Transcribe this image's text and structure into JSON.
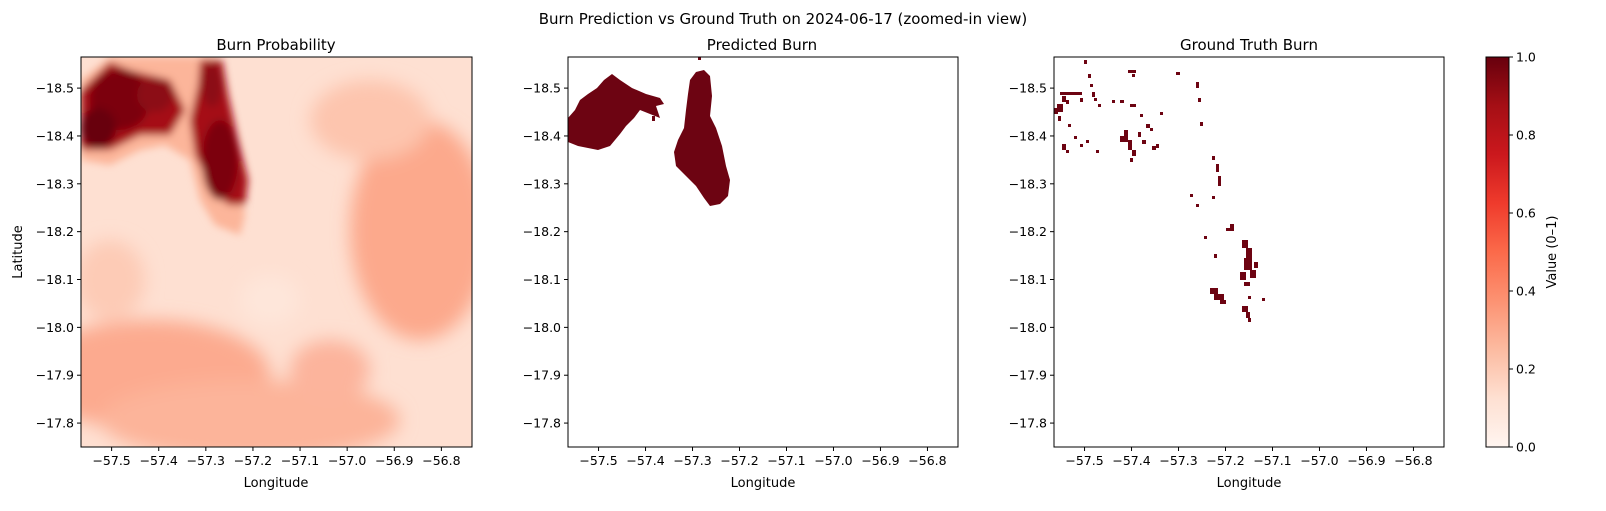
{
  "suptitle": "Burn Prediction vs Ground Truth on 2024-06-17 (zoomed-in view)",
  "chart_data": [
    {
      "type": "heatmap",
      "title": "Burn Probability",
      "xlabel": "Longitude",
      "ylabel": "Latitude",
      "xlim": [
        -57.565,
        -56.735
      ],
      "ylim": [
        -17.75,
        -18.565
      ],
      "xticks": [
        "−57.5",
        "−57.4",
        "−57.3",
        "−57.2",
        "−57.1",
        "−57.0",
        "−56.9",
        "−56.8"
      ],
      "xtick_values": [
        -57.5,
        -57.4,
        -57.3,
        -57.2,
        -57.1,
        -57.0,
        -56.9,
        -56.8
      ],
      "yticks": [
        "−18.5",
        "−18.4",
        "−18.3",
        "−18.2",
        "−18.1",
        "−18.0",
        "−17.9",
        "−17.8"
      ],
      "ytick_values": [
        -18.5,
        -18.4,
        -18.3,
        -18.2,
        -18.1,
        -18.0,
        -17.9,
        -17.8
      ],
      "colormap": "Reds",
      "value_range": [
        0,
        1
      ],
      "regions": [
        {
          "name": "high-probability-blob-west",
          "lon_center": -57.47,
          "lat_center": -18.44,
          "value": 0.95
        },
        {
          "name": "high-probability-blob-east",
          "lon_center": -57.27,
          "lat_center": -18.4,
          "value": 0.97
        },
        {
          "name": "moderate-band-south",
          "lon_center": -57.35,
          "lat_center": -17.95,
          "value": 0.35
        },
        {
          "name": "moderate-band-east",
          "lon_center": -56.85,
          "lat_center": -18.1,
          "value": 0.38
        }
      ]
    },
    {
      "type": "heatmap",
      "title": "Predicted Burn",
      "xlabel": "Longitude",
      "ylabel": "",
      "xlim": [
        -57.565,
        -56.735
      ],
      "ylim": [
        -17.75,
        -18.565
      ],
      "xticks": [
        "−57.5",
        "−57.4",
        "−57.3",
        "−57.2",
        "−57.1",
        "−57.0",
        "−56.9",
        "−56.8"
      ],
      "xtick_values": [
        -57.5,
        -57.4,
        -57.3,
        -57.2,
        -57.1,
        -57.0,
        -56.9,
        -56.8
      ],
      "yticks": [
        "−18.5",
        "−18.4",
        "−18.3",
        "−18.2",
        "−18.1",
        "−18.0",
        "−17.9",
        "−17.8"
      ],
      "ytick_values": [
        -18.5,
        -18.4,
        -18.3,
        -18.2,
        -18.1,
        -18.0,
        -17.9,
        -17.8
      ],
      "colormap": "Reds",
      "value_range": [
        0,
        1
      ],
      "binary": true
    },
    {
      "type": "heatmap",
      "title": "Ground Truth Burn",
      "xlabel": "Longitude",
      "ylabel": "",
      "xlim": [
        -57.565,
        -56.735
      ],
      "ylim": [
        -17.75,
        -18.565
      ],
      "xticks": [
        "−57.5",
        "−57.4",
        "−57.3",
        "−57.2",
        "−57.1",
        "−57.0",
        "−56.9",
        "−56.8"
      ],
      "xtick_values": [
        -57.5,
        -57.4,
        -57.3,
        -57.2,
        -57.1,
        -57.0,
        -56.9,
        -56.8
      ],
      "yticks": [
        "−18.5",
        "−18.4",
        "−18.3",
        "−18.2",
        "−18.1",
        "−18.0",
        "−17.9",
        "−17.8"
      ],
      "ytick_values": [
        -18.5,
        -18.4,
        -18.3,
        -18.2,
        -18.1,
        -18.0,
        -17.9,
        -17.8
      ],
      "colormap": "Reds",
      "value_range": [
        0,
        1
      ],
      "binary": true
    }
  ],
  "colorbar": {
    "label": "Value (0–1)",
    "ticks": [
      "0.0",
      "0.2",
      "0.4",
      "0.6",
      "0.8",
      "1.0"
    ],
    "tick_values": [
      0.0,
      0.2,
      0.4,
      0.6,
      0.8,
      1.0
    ],
    "color_low": "#fff5f0",
    "color_high": "#67000d"
  },
  "colors": {
    "burn_dark": "#6d0412",
    "prob_low": "#fee0d2",
    "prob_mid": "#fc9272",
    "prob_high": "#a50f15"
  }
}
